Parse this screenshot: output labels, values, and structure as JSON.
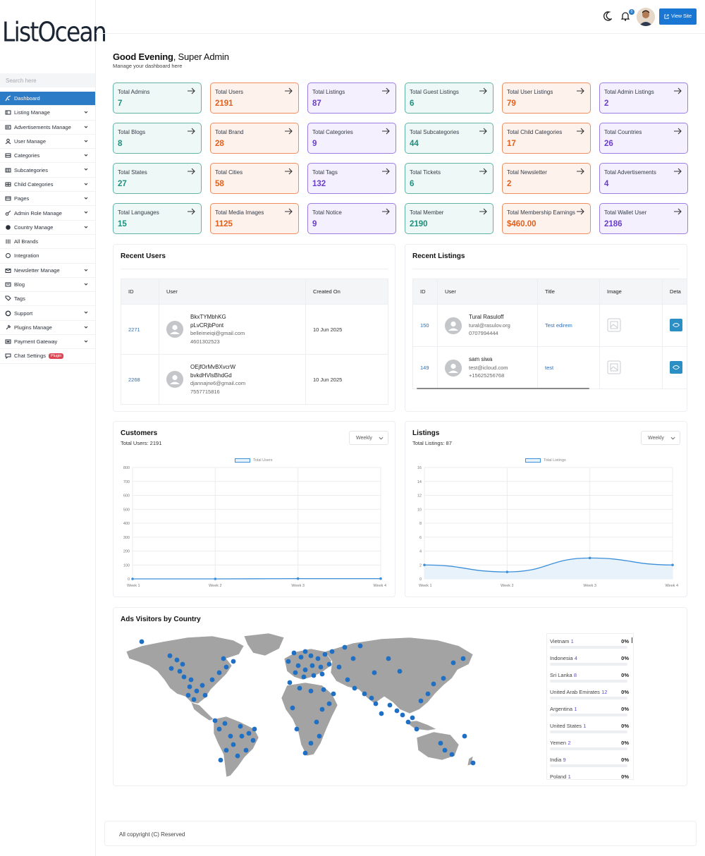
{
  "brand": {
    "name": "ListOcean"
  },
  "search": {
    "placeholder": "Search here"
  },
  "sidebar": {
    "items": [
      {
        "label": "Dashboard",
        "icon": "dashboard-icon",
        "active": true,
        "chevron": false
      },
      {
        "label": "Listing Manage",
        "icon": "list-icon",
        "chevron": true
      },
      {
        "label": "Advertisements Manage",
        "icon": "ad-icon",
        "chevron": true
      },
      {
        "label": "User Manage",
        "icon": "user-icon",
        "chevron": true
      },
      {
        "label": "Categories",
        "icon": "categories-icon",
        "chevron": true
      },
      {
        "label": "Subcategories",
        "icon": "subcategories-icon",
        "chevron": true
      },
      {
        "label": "Child Categories",
        "icon": "child-categories-icon",
        "chevron": true
      },
      {
        "label": "Pages",
        "icon": "pages-icon",
        "chevron": true
      },
      {
        "label": "Admin Role Manage",
        "icon": "key-icon",
        "chevron": true
      },
      {
        "label": "Country Manage",
        "icon": "globe-icon",
        "chevron": true
      },
      {
        "label": "All Brands",
        "icon": "brands-icon",
        "chevron": false
      },
      {
        "label": "Integration",
        "icon": "integration-icon",
        "chevron": false
      },
      {
        "label": "Newsletter Manage",
        "icon": "mail-icon",
        "chevron": true
      },
      {
        "label": "Blog",
        "icon": "blog-icon",
        "chevron": true
      },
      {
        "label": "Tags",
        "icon": "tag-icon",
        "chevron": false
      },
      {
        "label": "Support",
        "icon": "support-icon",
        "chevron": true
      },
      {
        "label": "Plugins Manage",
        "icon": "plugin-icon",
        "chevron": true
      },
      {
        "label": "Payment Gateway",
        "icon": "payment-icon",
        "chevron": true
      },
      {
        "label": "Chat Settings",
        "icon": "chat-icon",
        "chevron": false,
        "badge": "Plugin"
      }
    ]
  },
  "header": {
    "view_site": "View Site",
    "notifications": "0"
  },
  "greeting": {
    "bold": "Good Evening",
    "rest": ", Super Admin",
    "subtitle": "Manage your dashboard here"
  },
  "stats": [
    {
      "label": "Total Admins",
      "value": "7",
      "theme": "teal"
    },
    {
      "label": "Total Users",
      "value": "2191",
      "theme": "orange"
    },
    {
      "label": "Total Listings",
      "value": "87",
      "theme": "purple"
    },
    {
      "label": "Total Guest Listings",
      "value": "6",
      "theme": "teal"
    },
    {
      "label": "Total User Listings",
      "value": "79",
      "theme": "orange"
    },
    {
      "label": "Total Admin Listings",
      "value": "2",
      "theme": "purple"
    },
    {
      "label": "Total Blogs",
      "value": "8",
      "theme": "teal"
    },
    {
      "label": "Total Brand",
      "value": "28",
      "theme": "orange"
    },
    {
      "label": "Total Categories",
      "value": "9",
      "theme": "purple"
    },
    {
      "label": "Total Subcategories",
      "value": "44",
      "theme": "teal"
    },
    {
      "label": "Total Child Categories",
      "value": "17",
      "theme": "orange"
    },
    {
      "label": "Total Countries",
      "value": "26",
      "theme": "purple"
    },
    {
      "label": "Total States",
      "value": "27",
      "theme": "teal"
    },
    {
      "label": "Total Cities",
      "value": "58",
      "theme": "orange"
    },
    {
      "label": "Total Tags",
      "value": "132",
      "theme": "purple"
    },
    {
      "label": "Total Tickets",
      "value": "6",
      "theme": "teal"
    },
    {
      "label": "Total Newsletter",
      "value": "2",
      "theme": "orange"
    },
    {
      "label": "Total Advertisements",
      "value": "4",
      "theme": "purple"
    },
    {
      "label": "Total Languages",
      "value": "15",
      "theme": "teal"
    },
    {
      "label": "Total Media Images",
      "value": "1125",
      "theme": "orange"
    },
    {
      "label": "Total Notice",
      "value": "9",
      "theme": "purple"
    },
    {
      "label": "Total Member",
      "value": "2190",
      "theme": "teal"
    },
    {
      "label": "Total Membership Earnings",
      "value": "$460.00",
      "theme": "orange"
    },
    {
      "label": "Total Wallet User",
      "value": "2186",
      "theme": "purple"
    }
  ],
  "recent_users": {
    "title": "Recent Users",
    "columns": [
      "ID",
      "User",
      "Created On"
    ],
    "rows": [
      {
        "id": "2271",
        "name1": "BkxTYMbhKG",
        "name2": "pLvCRjbPont",
        "email": "belleimeiqi@gmail.com",
        "phone": "4601302523",
        "created": "10 Jun 2025"
      },
      {
        "id": "2268",
        "name1": "OEjfOrMvBXvcrW",
        "name2": "bvkdHVlsBhdGd",
        "email": "djannajrw6@gmail.com",
        "phone": "7557715816",
        "created": "10 Jun 2025"
      }
    ]
  },
  "recent_listings": {
    "title": "Recent Listings",
    "columns": [
      "ID",
      "User",
      "Title",
      "Image",
      "Deta"
    ],
    "rows": [
      {
        "id": "150",
        "name": "Tural Rasuloff",
        "email": "tural@rasulov.org",
        "phone": "0707994444",
        "title": "Test edirem"
      },
      {
        "id": "149",
        "name": "sam siwa",
        "email": "test@icloud.com",
        "phone": "+15625256768",
        "title": "test"
      }
    ]
  },
  "customers": {
    "title": "Customers",
    "subtitle": "Total Users: 2191",
    "filter": "Weekly",
    "legend": "Total Users"
  },
  "listings": {
    "title": "Listings",
    "subtitle": "Total Listings: 87",
    "filter": "Weekly",
    "legend": "Total Listings"
  },
  "chart_data": [
    {
      "type": "line",
      "categories": [
        "Week 1",
        "Week 2",
        "Week 3",
        "Week 4"
      ],
      "series": [
        {
          "name": "Total Users",
          "values": [
            0,
            0,
            2,
            2
          ]
        }
      ],
      "ylim": [
        0,
        800
      ],
      "yticks": [
        0,
        100,
        200,
        300,
        400,
        500,
        600,
        700,
        800
      ],
      "grid": true,
      "legend": "top-center",
      "color": "#3b8fd9"
    },
    {
      "type": "area",
      "categories": [
        "Week 1",
        "Week 2",
        "Week 3",
        "Week 4"
      ],
      "series": [
        {
          "name": "Total Listings",
          "values": [
            2,
            1,
            3,
            2
          ]
        }
      ],
      "ylim": [
        0,
        16
      ],
      "yticks": [
        0,
        2,
        4,
        6,
        8,
        10,
        12,
        14,
        16
      ],
      "grid": true,
      "legend": "top-center",
      "color": "#3b8fd9"
    }
  ],
  "ads_visitors": {
    "title": "Ads Visitors by Country",
    "countries": [
      {
        "name": "Vietnam",
        "count": "1",
        "pct": "0%"
      },
      {
        "name": "Indonesia",
        "count": "4",
        "pct": "0%"
      },
      {
        "name": "Sri Lanka",
        "count": "8",
        "pct": "0%"
      },
      {
        "name": "United Arab Emirates",
        "count": "12",
        "pct": "0%"
      },
      {
        "name": "Argentina",
        "count": "1",
        "pct": "0%"
      },
      {
        "name": "United States",
        "count": "1",
        "pct": "0%"
      },
      {
        "name": "Yemen",
        "count": "2",
        "pct": "0%"
      },
      {
        "name": "India",
        "count": "9",
        "pct": "0%"
      },
      {
        "name": "Poland",
        "count": "1",
        "pct": "0%"
      }
    ]
  },
  "footer": {
    "text": "All copyright (C) Reserved"
  },
  "colors": {
    "accent": "#2c7bc7",
    "teal": "#1e8f7c",
    "orange": "#e0611f",
    "purple": "#6a3fc8"
  }
}
